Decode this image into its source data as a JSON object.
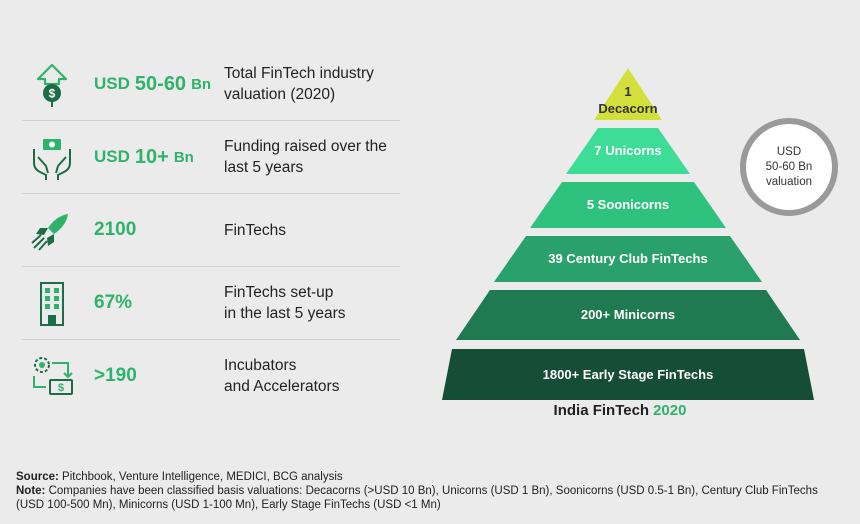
{
  "stats": [
    {
      "icon": "money-arrow-up-icon",
      "prefix": "USD",
      "value": "50-60",
      "unit": "Bn",
      "line1": "Total FinTech industry",
      "line2": "valuation (2020)"
    },
    {
      "icon": "hands-money-icon",
      "prefix": "USD",
      "value": "10+",
      "unit": "Bn",
      "line1": "Funding raised over the",
      "line2": "last 5 years"
    },
    {
      "icon": "rocket-icon",
      "prefix": "",
      "value": "2100",
      "unit": "",
      "line1": "FinTechs",
      "line2": ""
    },
    {
      "icon": "building-icon",
      "prefix": "",
      "value": "67%",
      "unit": "",
      "line1": "FinTechs set-up",
      "line2": "in the last 5 years"
    },
    {
      "icon": "gear-money-cycle-icon",
      "prefix": "",
      "value": ">190",
      "unit": "",
      "line1": "Incubators",
      "line2": "and Accelerators"
    }
  ],
  "pyramid": {
    "tiers": [
      {
        "label_line1": "1",
        "label_line2": "Decacorn",
        "color": "#d3e03c",
        "text_color": "#333333"
      },
      {
        "label_line1": "7 Unicorns",
        "label_line2": "",
        "color": "#3ddc97",
        "text_color": "#ffffff"
      },
      {
        "label_line1": "5 Soonicorns",
        "label_line2": "",
        "color": "#2ec27e",
        "text_color": "#ffffff"
      },
      {
        "label_line1": "39 Century Club FinTechs",
        "label_line2": "",
        "color": "#2aa06d",
        "text_color": "#ffffff"
      },
      {
        "label_line1": "200+ Minicorns",
        "label_line2": "",
        "color": "#1f7a52",
        "text_color": "#ffffff"
      },
      {
        "label_line1": "1800+ Early Stage FinTechs",
        "label_line2": "",
        "color": "#164d36",
        "text_color": "#ffffff"
      }
    ],
    "caption": "India FinTech",
    "caption_year": "2020"
  },
  "bubble": {
    "line1": "USD",
    "line2": "50-60 Bn",
    "line3": "valuation"
  },
  "footer": {
    "source_label": "Source:",
    "source_text": " Pitchbook, Venture Intelligence, MEDICI, BCG analysis",
    "note_label": "Note:",
    "note_text": " Companies have been classified basis valuations: Decacorns (>USD 10 Bn), Unicorns (USD 1 Bn), Soonicorns (USD 0.5-1 Bn), Century Club FinTechs (USD 100-500 Mn), Minicorns (USD 1-100 Mn), Early Stage FinTechs (USD <1 Mn)"
  },
  "colors": {
    "accent": "#2fb36a",
    "background": "#ebebeb"
  }
}
